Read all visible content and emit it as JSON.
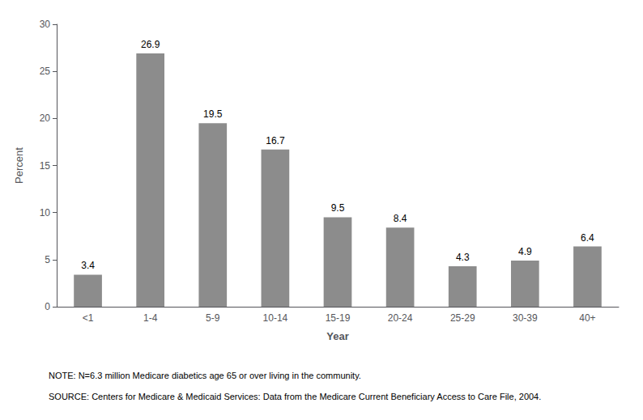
{
  "chart_data": {
    "type": "bar",
    "categories": [
      "<1",
      "1-4",
      "5-9",
      "10-14",
      "15-19",
      "20-24",
      "25-29",
      "30-39",
      "40+"
    ],
    "values": [
      3.4,
      26.9,
      19.5,
      16.7,
      9.5,
      8.4,
      4.3,
      4.9,
      6.4
    ],
    "color": "#8c8c8c",
    "xlabel": "Year",
    "ylabel": "Percent",
    "ylim": [
      0,
      30
    ],
    "yticks": [
      0,
      5,
      10,
      15,
      20,
      25,
      30
    ],
    "grid": false,
    "data_labels": true,
    "annotations": [
      "NOTE: N=6.3 million Medicare diabetics age 65 or over living in the community.",
      "SOURCE: Centers for Medicare & Medicaid Services: Data from the Medicare Current Beneficiary Access to Care File, 2004."
    ]
  }
}
